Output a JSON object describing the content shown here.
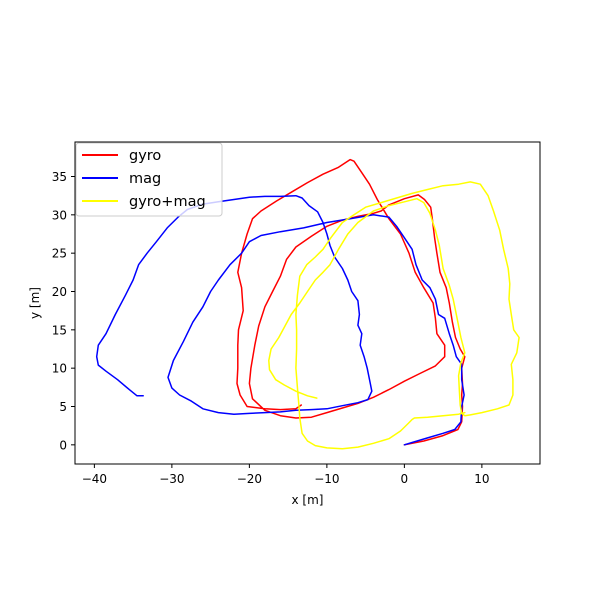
{
  "chart_data": {
    "type": "line",
    "title": "",
    "xlabel": "x [m]",
    "ylabel": "y [m]",
    "xlim": [
      -42.5,
      17.5
    ],
    "ylim": [
      -2.5,
      39.5
    ],
    "xticks": [
      -40,
      -30,
      -20,
      -10,
      0,
      10
    ],
    "yticks": [
      0,
      5,
      10,
      15,
      20,
      25,
      30,
      35
    ],
    "grid": false,
    "legend_position": "top-left",
    "series": [
      {
        "name": "gyro",
        "color": "#ff0000",
        "points": [
          [
            0,
            0
          ],
          [
            2.5,
            0.5
          ],
          [
            5,
            1.2
          ],
          [
            6.9,
            2
          ],
          [
            7.4,
            3
          ],
          [
            7.5,
            5
          ],
          [
            7.4,
            6.5
          ],
          [
            7.5,
            8
          ],
          [
            7.4,
            10
          ],
          [
            7.8,
            11.5
          ],
          [
            7.2,
            12.5
          ],
          [
            6.6,
            14
          ],
          [
            6.2,
            16
          ],
          [
            5.8,
            18.5
          ],
          [
            5.4,
            20.5
          ],
          [
            4.6,
            22.5
          ],
          [
            4.2,
            25
          ],
          [
            3.9,
            27
          ],
          [
            3.6,
            29.5
          ],
          [
            3.4,
            31
          ],
          [
            2.6,
            32
          ],
          [
            1.8,
            32.6
          ],
          [
            0,
            32.1
          ],
          [
            -2,
            31.3
          ],
          [
            -3,
            30.5
          ],
          [
            -4,
            30.2
          ],
          [
            -6,
            29.8
          ],
          [
            -8,
            29.3
          ],
          [
            -10,
            28.5
          ],
          [
            -12,
            27.2
          ],
          [
            -14,
            25.8
          ],
          [
            -15.2,
            24.2
          ],
          [
            -16,
            22
          ],
          [
            -17,
            20
          ],
          [
            -18,
            18
          ],
          [
            -18.8,
            15.5
          ],
          [
            -19.3,
            13
          ],
          [
            -19.8,
            10
          ],
          [
            -20,
            8
          ],
          [
            -19.6,
            6
          ],
          [
            -18,
            4.5
          ],
          [
            -16,
            3.8
          ],
          [
            -14,
            3.5
          ],
          [
            -12,
            3.6
          ],
          [
            -10,
            4.2
          ],
          [
            -8,
            4.8
          ],
          [
            -6,
            5.4
          ],
          [
            -4,
            6.2
          ],
          [
            -2,
            7.2
          ],
          [
            0,
            8.3
          ],
          [
            2,
            9.3
          ],
          [
            4,
            10.3
          ],
          [
            5.2,
            11.5
          ],
          [
            5.2,
            13
          ],
          [
            4.2,
            14.5
          ],
          [
            4,
            16.5
          ],
          [
            3.7,
            18.5
          ],
          [
            2.5,
            20.5
          ],
          [
            1.4,
            22.5
          ],
          [
            0.6,
            25
          ],
          [
            -0.5,
            27.5
          ],
          [
            -2,
            29.5
          ],
          [
            -3.5,
            32
          ],
          [
            -4.5,
            34
          ],
          [
            -5.5,
            35.5
          ],
          [
            -6.5,
            37
          ],
          [
            -7,
            37.2
          ],
          [
            -8.5,
            36.2
          ],
          [
            -10.5,
            35.3
          ],
          [
            -12.5,
            34.2
          ],
          [
            -14.5,
            33
          ],
          [
            -16.5,
            31.8
          ],
          [
            -18.5,
            30.5
          ],
          [
            -19.6,
            29.5
          ],
          [
            -20.3,
            27.5
          ],
          [
            -21,
            25
          ],
          [
            -21.5,
            22.5
          ],
          [
            -21,
            20.5
          ],
          [
            -20.8,
            17.5
          ],
          [
            -21.4,
            15
          ],
          [
            -21.5,
            13
          ],
          [
            -21.5,
            10
          ],
          [
            -21.6,
            8
          ],
          [
            -21.2,
            6.5
          ],
          [
            -20.3,
            5
          ],
          [
            -18,
            4.7
          ],
          [
            -16,
            4.6
          ],
          [
            -14,
            4.7
          ],
          [
            -13.3,
            5.2
          ]
        ]
      },
      {
        "name": "mag",
        "color": "#0000ff",
        "points": [
          [
            -33.7,
            6.4
          ],
          [
            -34.5,
            6.4
          ],
          [
            -35.5,
            7.2
          ],
          [
            -37,
            8.5
          ],
          [
            -38.5,
            9.6
          ],
          [
            -39.5,
            10.4
          ],
          [
            -39.7,
            11.5
          ],
          [
            -39.5,
            13
          ],
          [
            -38.5,
            14.5
          ],
          [
            -37.3,
            17
          ],
          [
            -36,
            19.5
          ],
          [
            -35,
            21.5
          ],
          [
            -34.3,
            23.5
          ],
          [
            -33.2,
            25
          ],
          [
            -32,
            26.5
          ],
          [
            -30.6,
            28.3
          ],
          [
            -29.2,
            29.7
          ],
          [
            -28,
            30.7
          ],
          [
            -26,
            31.4
          ],
          [
            -24,
            31.7
          ],
          [
            -22,
            32
          ],
          [
            -20,
            32.3
          ],
          [
            -18,
            32.4
          ],
          [
            -16,
            32.4
          ],
          [
            -14,
            32.5
          ],
          [
            -13.2,
            32.2
          ],
          [
            -12.3,
            31.2
          ],
          [
            -11.2,
            30.4
          ],
          [
            -10.5,
            29
          ],
          [
            -10,
            27.5
          ],
          [
            -9.6,
            26
          ],
          [
            -9,
            24.5
          ],
          [
            -8,
            23
          ],
          [
            -7.3,
            21.5
          ],
          [
            -6.8,
            20
          ],
          [
            -6,
            18.8
          ],
          [
            -5.8,
            17
          ],
          [
            -6,
            15.6
          ],
          [
            -5.5,
            14.5
          ],
          [
            -5.7,
            13
          ],
          [
            -5.2,
            11.5
          ],
          [
            -4.8,
            10
          ],
          [
            -4.4,
            8
          ],
          [
            -4.2,
            7
          ],
          [
            -4.7,
            5.9
          ],
          [
            -6,
            5.5
          ],
          [
            -8,
            5.1
          ],
          [
            -10,
            4.7
          ],
          [
            -12,
            4.6
          ],
          [
            -14,
            4.5
          ],
          [
            -16,
            4.3
          ],
          [
            -18,
            4.2
          ],
          [
            -20,
            4.1
          ],
          [
            -22,
            4
          ],
          [
            -24,
            4.2
          ],
          [
            -26,
            4.7
          ],
          [
            -27.5,
            5.7
          ],
          [
            -29,
            6.5
          ],
          [
            -30,
            7.4
          ],
          [
            -30.5,
            8.8
          ],
          [
            -29.8,
            11
          ],
          [
            -28.5,
            13.5
          ],
          [
            -27.3,
            16
          ],
          [
            -26,
            18
          ],
          [
            -25,
            20
          ],
          [
            -24,
            21.5
          ],
          [
            -22.5,
            23.5
          ],
          [
            -21,
            25
          ],
          [
            -20,
            26.5
          ],
          [
            -18.5,
            27.3
          ],
          [
            -16,
            27.8
          ],
          [
            -13,
            28.3
          ],
          [
            -10,
            29
          ],
          [
            -7,
            29.5
          ],
          [
            -4,
            30
          ],
          [
            -2,
            29.7
          ],
          [
            -1,
            28.5
          ],
          [
            0,
            27
          ],
          [
            1,
            25.5
          ],
          [
            1.5,
            23.5
          ],
          [
            2.3,
            21.5
          ],
          [
            3.3,
            20.5
          ],
          [
            4,
            19
          ],
          [
            4.4,
            17
          ],
          [
            5.2,
            16.5
          ],
          [
            5.8,
            14.5
          ],
          [
            6.3,
            13
          ],
          [
            6.7,
            11.5
          ],
          [
            7.4,
            10.5
          ],
          [
            7.4,
            8.5
          ],
          [
            7.7,
            6.5
          ],
          [
            7.4,
            5
          ],
          [
            7.3,
            3
          ],
          [
            6.5,
            2
          ],
          [
            5,
            1.5
          ],
          [
            3,
            0.9
          ],
          [
            1,
            0.3
          ],
          [
            0,
            0
          ]
        ]
      },
      {
        "name": "gyro+mag",
        "color": "#ffff00",
        "points": [
          [
            -11.3,
            6.1
          ],
          [
            -12.5,
            6.4
          ],
          [
            -14,
            7
          ],
          [
            -15.5,
            7.8
          ],
          [
            -16.6,
            8.5
          ],
          [
            -17.4,
            9.8
          ],
          [
            -17.5,
            11
          ],
          [
            -17.2,
            12.5
          ],
          [
            -16.2,
            14
          ],
          [
            -15.4,
            15.5
          ],
          [
            -14.6,
            17
          ],
          [
            -13.5,
            18.5
          ],
          [
            -12.5,
            20
          ],
          [
            -11.5,
            21.5
          ],
          [
            -10.5,
            22.5
          ],
          [
            -9.6,
            23.5
          ],
          [
            -8.5,
            25.5
          ],
          [
            -7.3,
            27.5
          ],
          [
            -6,
            29
          ],
          [
            -4,
            30.5
          ],
          [
            -2,
            31.2
          ],
          [
            0,
            31.7
          ],
          [
            1.6,
            32.1
          ],
          [
            2.5,
            31.6
          ],
          [
            3.3,
            30.2
          ],
          [
            4,
            28
          ],
          [
            4.5,
            26
          ],
          [
            5,
            23
          ],
          [
            5.8,
            20.8
          ],
          [
            6.3,
            19
          ],
          [
            6.8,
            16.5
          ],
          [
            7.3,
            14
          ],
          [
            7.8,
            12
          ],
          [
            7.3,
            10.7
          ],
          [
            7,
            9
          ],
          [
            7.1,
            7
          ],
          [
            7.2,
            5.2
          ],
          [
            7.4,
            4.1
          ],
          [
            7.8,
            3.8
          ],
          [
            8.5,
            3.9
          ],
          [
            10,
            4.2
          ],
          [
            12,
            4.7
          ],
          [
            13.5,
            5.2
          ],
          [
            14,
            6.5
          ],
          [
            14,
            8.5
          ],
          [
            13.8,
            10.5
          ],
          [
            14.5,
            12
          ],
          [
            14.8,
            14
          ],
          [
            14.1,
            15
          ],
          [
            13.8,
            17
          ],
          [
            13.5,
            19
          ],
          [
            13.6,
            21
          ],
          [
            13.4,
            23
          ],
          [
            12.8,
            25.5
          ],
          [
            12.3,
            28
          ],
          [
            11.5,
            30.5
          ],
          [
            10.8,
            32.5
          ],
          [
            9.8,
            34
          ],
          [
            8.5,
            34.3
          ],
          [
            7,
            34
          ],
          [
            5,
            33.8
          ],
          [
            3,
            33.3
          ],
          [
            1,
            32.8
          ],
          [
            -1,
            32.2
          ],
          [
            -3,
            31.6
          ],
          [
            -5,
            31
          ],
          [
            -6.5,
            30
          ],
          [
            -8,
            29
          ],
          [
            -9.5,
            27
          ],
          [
            -10.5,
            25.5
          ],
          [
            -11.5,
            24.5
          ],
          [
            -12.6,
            23.5
          ],
          [
            -13.5,
            22
          ],
          [
            -13.8,
            19.5
          ],
          [
            -14,
            17
          ],
          [
            -13.9,
            15
          ],
          [
            -13.9,
            12.5
          ],
          [
            -14,
            10
          ],
          [
            -13.8,
            7.5
          ],
          [
            -13.6,
            5
          ],
          [
            -13.5,
            3.5
          ],
          [
            -13.2,
            1.5
          ],
          [
            -12.5,
            0.5
          ],
          [
            -11.5,
            -0.1
          ],
          [
            -10,
            -0.4
          ],
          [
            -8,
            -0.5
          ],
          [
            -6,
            -0.3
          ],
          [
            -4,
            0.2
          ],
          [
            -2,
            0.8
          ],
          [
            -0.5,
            1.8
          ],
          [
            0.5,
            2.8
          ],
          [
            1,
            3.3
          ],
          [
            1.3,
            3.5
          ],
          [
            3,
            3.6
          ],
          [
            5,
            3.8
          ],
          [
            7,
            4
          ],
          [
            7.8,
            4.2
          ]
        ]
      }
    ]
  }
}
